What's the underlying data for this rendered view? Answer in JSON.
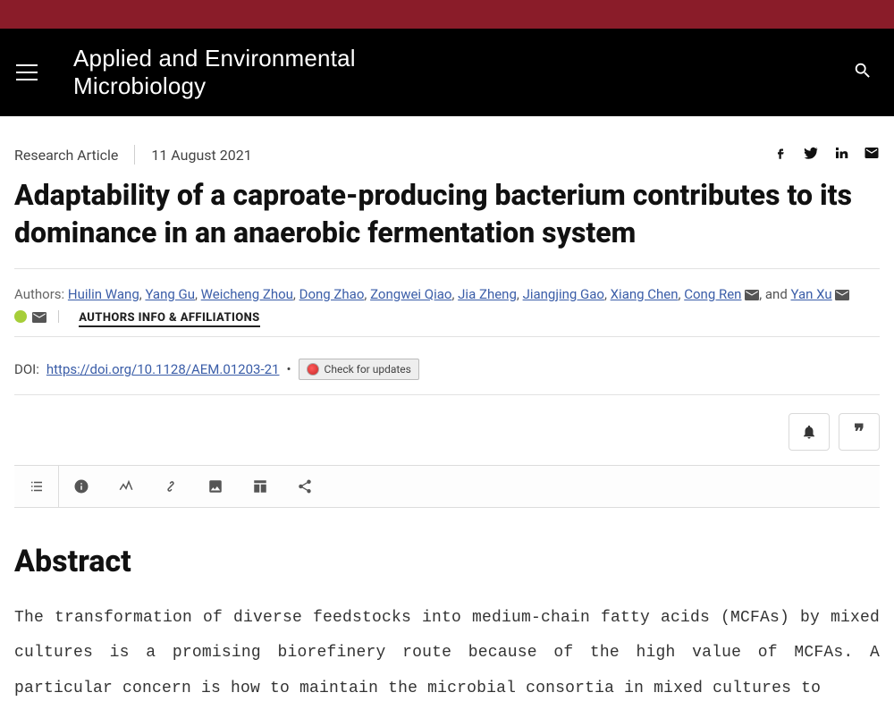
{
  "colors": {
    "topstrip": "#8a1c29",
    "header_bg": "#000000",
    "link": "#3a5da8",
    "divider": "#e2e2e2",
    "orcid": "#a6ce39"
  },
  "journal": {
    "title_line1": "Applied and Environmental",
    "title_line2": "Microbiology"
  },
  "meta": {
    "article_type": "Research Article",
    "pub_date": "11 August 2021"
  },
  "title": "Adaptability of a caproate-producing bacterium contributes to its dominance in an anaerobic fermentation system",
  "authors": {
    "label": "Authors:",
    "list": [
      {
        "name": "Huilin Wang"
      },
      {
        "name": "Yang Gu"
      },
      {
        "name": "Weicheng Zhou"
      },
      {
        "name": "Dong Zhao"
      },
      {
        "name": "Zongwei Qiao"
      },
      {
        "name": "Jia Zheng"
      },
      {
        "name": "Jiangjing Gao"
      },
      {
        "name": "Xiang Chen"
      },
      {
        "name": "Cong Ren",
        "mail": true
      },
      {
        "name": "Yan Xu",
        "orcid": true,
        "mail": true,
        "prefix_and": true
      }
    ],
    "affiliations_label": "AUTHORS INFO & AFFILIATIONS"
  },
  "doi": {
    "label": "DOI:",
    "url_text": "https://doi.org/10.1128/AEM.01203-21",
    "crossmark_label": "Check for updates"
  },
  "abstract": {
    "heading": "Abstract",
    "body": "The transformation of diverse feedstocks into medium-chain fatty acids (MCFAs) by mixed cultures is a promising biorefinery route because of the high value of MCFAs. A particular concern is how to maintain the microbial consortia in mixed cultures to"
  }
}
